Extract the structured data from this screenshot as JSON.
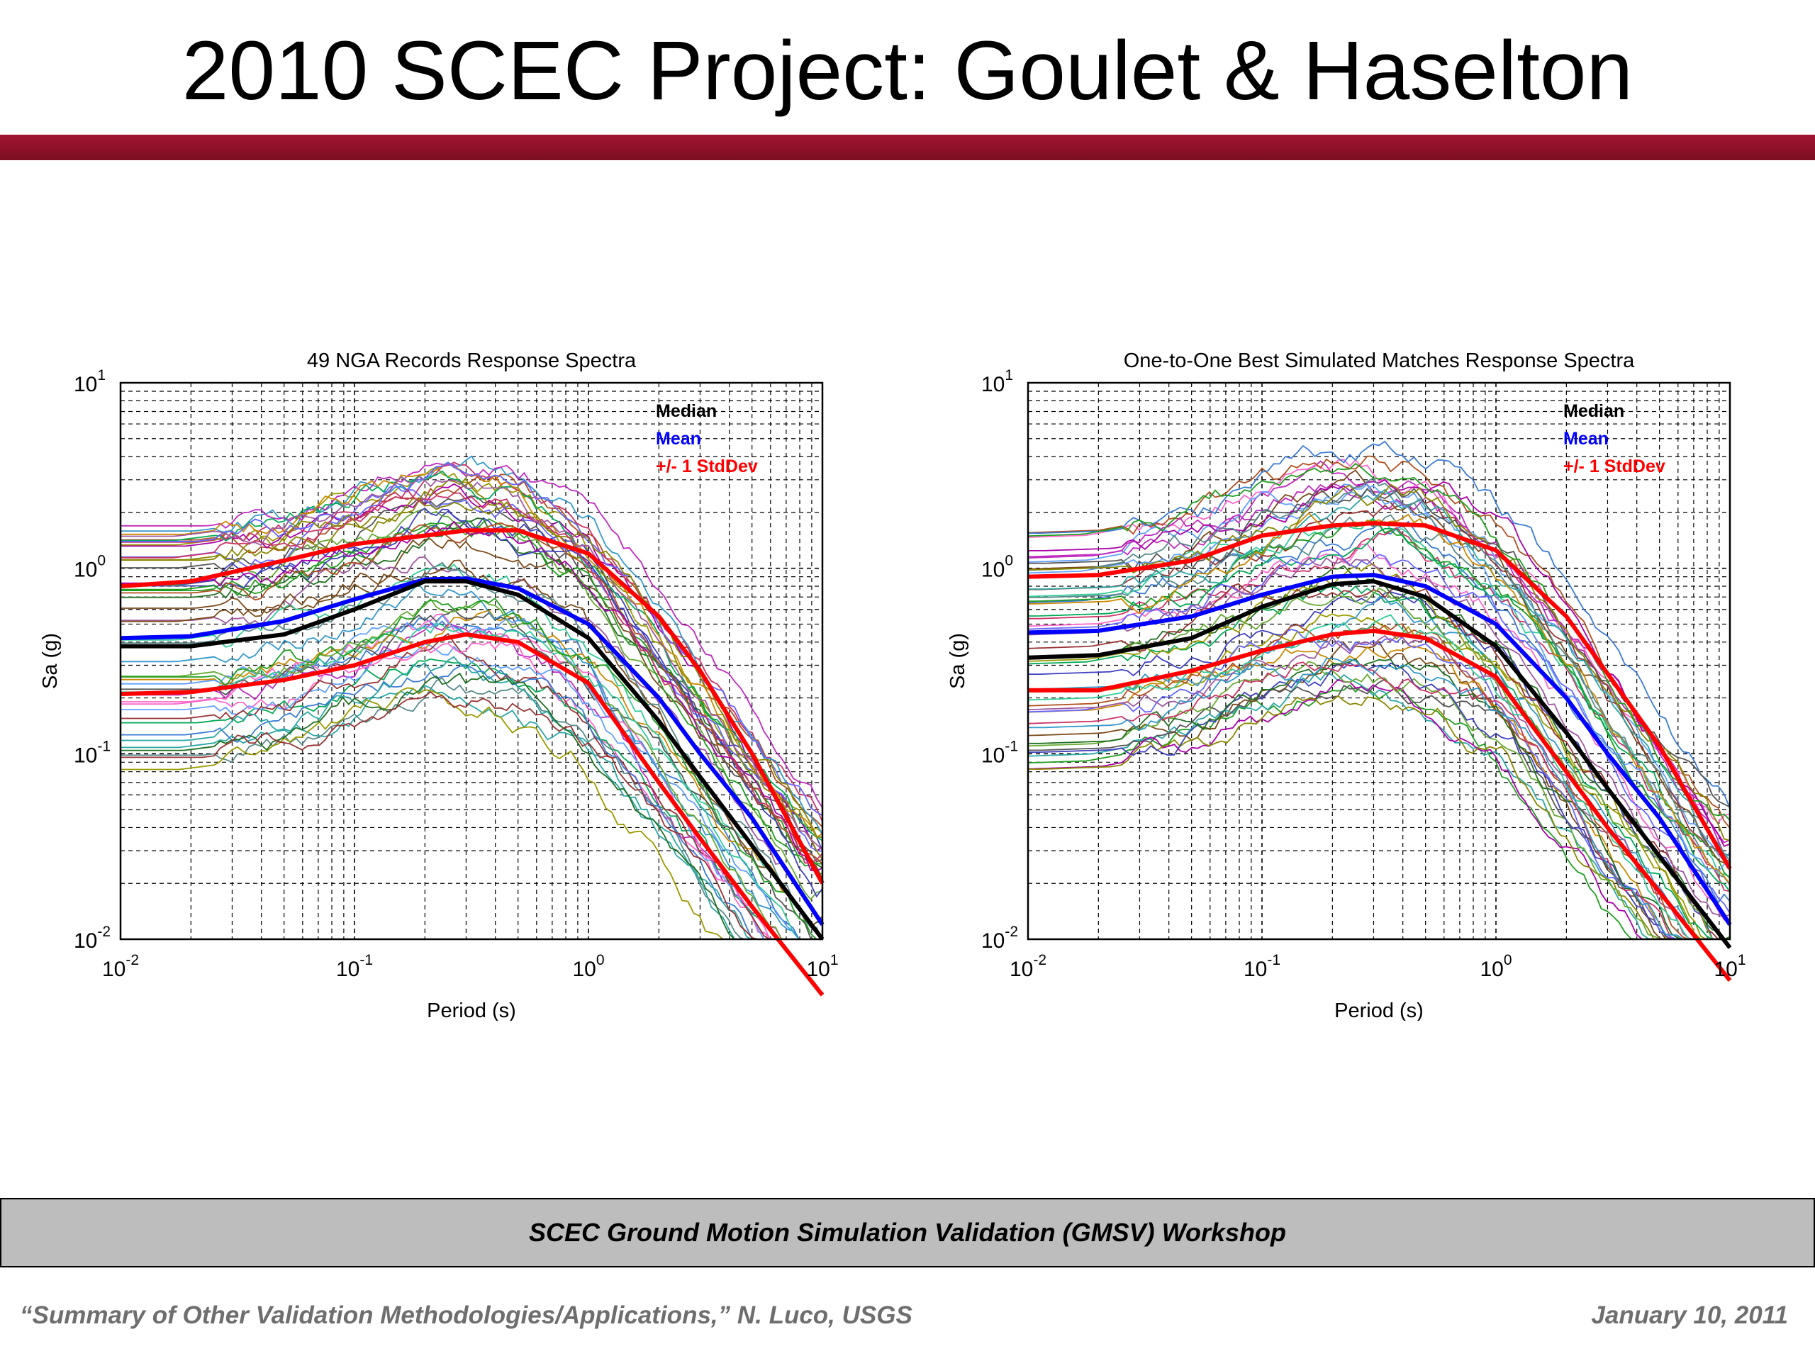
{
  "slide": {
    "title": "2010 SCEC Project: Goulet & Haselton",
    "footer_band": "SCEC Ground Motion Simulation Validation (GMSV) Workshop",
    "footer_left": "“Summary of Other Validation Methodologies/Applications,” N. Luco, USGS",
    "footer_right": "January 10, 2011"
  },
  "colors": {
    "title_rule": "#8b1028",
    "median": "#000000",
    "mean": "#0000ff",
    "stddev": "#ff0000"
  },
  "chart_data": [
    {
      "type": "line",
      "title": "49 NGA Records Response Spectra",
      "xlabel": "Period (s)",
      "ylabel": "Sa (g)",
      "x_scale": "log",
      "y_scale": "log",
      "xlim": [
        0.01,
        10
      ],
      "ylim": [
        0.01,
        10
      ],
      "grid": true,
      "legend_position": "top-right",
      "x_ticks": [
        {
          "base": "10",
          "exp": "-2"
        },
        {
          "base": "10",
          "exp": "-1"
        },
        {
          "base": "10",
          "exp": "0"
        },
        {
          "base": "10",
          "exp": "1"
        }
      ],
      "y_ticks": [
        {
          "base": "10",
          "exp": "-2"
        },
        {
          "base": "10",
          "exp": "-1"
        },
        {
          "base": "10",
          "exp": "0"
        },
        {
          "base": "10",
          "exp": "1"
        }
      ],
      "record_count": 49,
      "periods": [
        0.01,
        0.02,
        0.05,
        0.1,
        0.2,
        0.3,
        0.5,
        1,
        2,
        3,
        5,
        10
      ],
      "series": [
        {
          "name": "Median",
          "color": "#000000",
          "values": [
            0.38,
            0.38,
            0.44,
            0.6,
            0.85,
            0.85,
            0.72,
            0.42,
            0.15,
            0.075,
            0.032,
            0.01
          ]
        },
        {
          "name": "Mean",
          "color": "#0000ff",
          "values": [
            0.42,
            0.43,
            0.52,
            0.68,
            0.87,
            0.88,
            0.78,
            0.5,
            0.2,
            0.1,
            0.045,
            0.012
          ]
        },
        {
          "name": "+/- 1 StdDev",
          "color": "#ff0000",
          "values": [
            0.8,
            0.85,
            1.1,
            1.35,
            1.5,
            1.6,
            1.6,
            1.2,
            0.55,
            0.28,
            0.1,
            0.02
          ]
        },
        {
          "name": "",
          "color": "#ff0000",
          "values": [
            0.21,
            0.215,
            0.25,
            0.3,
            0.4,
            0.44,
            0.4,
            0.24,
            0.07,
            0.035,
            0.015,
            0.005
          ]
        }
      ]
    },
    {
      "type": "line",
      "title": "One-to-One Best Simulated Matches Response Spectra",
      "xlabel": "Period (s)",
      "ylabel": "Sa (g)",
      "x_scale": "log",
      "y_scale": "log",
      "xlim": [
        0.01,
        10
      ],
      "ylim": [
        0.01,
        10
      ],
      "grid": true,
      "legend_position": "top-right",
      "x_ticks": [
        {
          "base": "10",
          "exp": "-2"
        },
        {
          "base": "10",
          "exp": "-1"
        },
        {
          "base": "10",
          "exp": "0"
        },
        {
          "base": "10",
          "exp": "1"
        }
      ],
      "y_ticks": [
        {
          "base": "10",
          "exp": "-2"
        },
        {
          "base": "10",
          "exp": "-1"
        },
        {
          "base": "10",
          "exp": "0"
        },
        {
          "base": "10",
          "exp": "1"
        }
      ],
      "record_count": 49,
      "periods": [
        0.01,
        0.02,
        0.05,
        0.1,
        0.2,
        0.3,
        0.5,
        1,
        2,
        3,
        5,
        10
      ],
      "series": [
        {
          "name": "Median",
          "color": "#000000",
          "values": [
            0.33,
            0.34,
            0.42,
            0.62,
            0.82,
            0.85,
            0.7,
            0.38,
            0.13,
            0.065,
            0.028,
            0.009
          ]
        },
        {
          "name": "Mean",
          "color": "#0000ff",
          "values": [
            0.45,
            0.46,
            0.55,
            0.72,
            0.9,
            0.92,
            0.8,
            0.5,
            0.2,
            0.1,
            0.045,
            0.012
          ]
        },
        {
          "name": "+/- 1 StdDev",
          "color": "#ff0000",
          "values": [
            0.9,
            0.92,
            1.1,
            1.5,
            1.7,
            1.75,
            1.7,
            1.25,
            0.55,
            0.27,
            0.11,
            0.024
          ]
        },
        {
          "name": "",
          "color": "#ff0000",
          "values": [
            0.22,
            0.22,
            0.28,
            0.36,
            0.44,
            0.46,
            0.42,
            0.26,
            0.08,
            0.04,
            0.018,
            0.006
          ]
        }
      ]
    }
  ]
}
